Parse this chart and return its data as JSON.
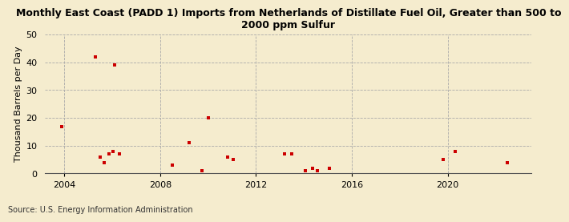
{
  "title": "Monthly East Coast (PADD 1) Imports from Netherlands of Distillate Fuel Oil, Greater than 500 to\n2000 ppm Sulfur",
  "ylabel": "Thousand Barrels per Day",
  "source": "Source: U.S. Energy Information Administration",
  "background_color": "#f5ecce",
  "plot_background_color": "#f5ecce",
  "scatter_color": "#cc0000",
  "xlim": [
    2003.2,
    2023.5
  ],
  "ylim": [
    0,
    50
  ],
  "yticks": [
    0,
    10,
    20,
    30,
    40,
    50
  ],
  "xticks": [
    2004,
    2008,
    2012,
    2016,
    2020
  ],
  "points": [
    [
      2003.9,
      17
    ],
    [
      2005.3,
      42
    ],
    [
      2006.1,
      39
    ],
    [
      2005.5,
      6
    ],
    [
      2005.65,
      4
    ],
    [
      2005.85,
      7
    ],
    [
      2006.05,
      8
    ],
    [
      2006.3,
      7
    ],
    [
      2008.5,
      3
    ],
    [
      2009.2,
      11
    ],
    [
      2009.75,
      1
    ],
    [
      2010.0,
      20
    ],
    [
      2010.8,
      6
    ],
    [
      2011.05,
      5
    ],
    [
      2013.2,
      7
    ],
    [
      2013.5,
      7
    ],
    [
      2014.05,
      1
    ],
    [
      2014.35,
      2
    ],
    [
      2014.55,
      1
    ],
    [
      2015.05,
      2
    ],
    [
      2019.8,
      5
    ],
    [
      2020.3,
      8
    ],
    [
      2022.5,
      4
    ]
  ]
}
